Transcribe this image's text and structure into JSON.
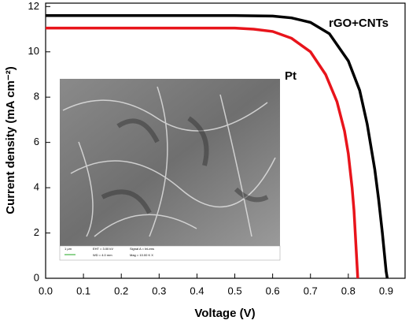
{
  "chart_data": {
    "type": "line",
    "xlabel": "Voltage (V)",
    "ylabel": "Current density (mA cm⁻²)",
    "xlim": [
      0,
      0.95
    ],
    "ylim": [
      0,
      12.15
    ],
    "xticks": [
      {
        "value": 0,
        "label": "0.0"
      },
      0.1,
      0.2,
      0.3,
      0.4,
      0.5,
      0.6,
      0.7,
      0.8,
      0.9
    ],
    "yticks": [
      0,
      2,
      4,
      6,
      8,
      10,
      12
    ],
    "series": [
      {
        "name": "rGO+CNTs",
        "color": "#000000",
        "x": [
          0,
          0.1,
          0.2,
          0.3,
          0.4,
          0.5,
          0.6,
          0.65,
          0.7,
          0.75,
          0.8,
          0.83,
          0.85,
          0.87,
          0.88,
          0.89,
          0.9,
          0.903
        ],
        "values": [
          11.6,
          11.6,
          11.6,
          11.6,
          11.6,
          11.6,
          11.58,
          11.5,
          11.3,
          10.8,
          9.6,
          8.3,
          6.8,
          4.8,
          3.5,
          2.0,
          0.3,
          0
        ]
      },
      {
        "name": "Pt",
        "color": "#e8141b",
        "x": [
          0,
          0.1,
          0.2,
          0.3,
          0.4,
          0.5,
          0.55,
          0.6,
          0.65,
          0.7,
          0.74,
          0.77,
          0.79,
          0.8,
          0.81,
          0.815,
          0.82,
          0.825
        ],
        "values": [
          11.05,
          11.05,
          11.05,
          11.05,
          11.05,
          11.05,
          11.0,
          10.9,
          10.6,
          10.0,
          9.0,
          7.8,
          6.5,
          5.5,
          4.0,
          3.0,
          1.5,
          0
        ]
      }
    ],
    "inset": {
      "scale_bar": "1 μm",
      "info": [
        "EHT = 3.00 kV",
        "Signal A = InLens",
        "WD = 4.0 mm",
        "Mag = 10.00 K X"
      ]
    }
  }
}
